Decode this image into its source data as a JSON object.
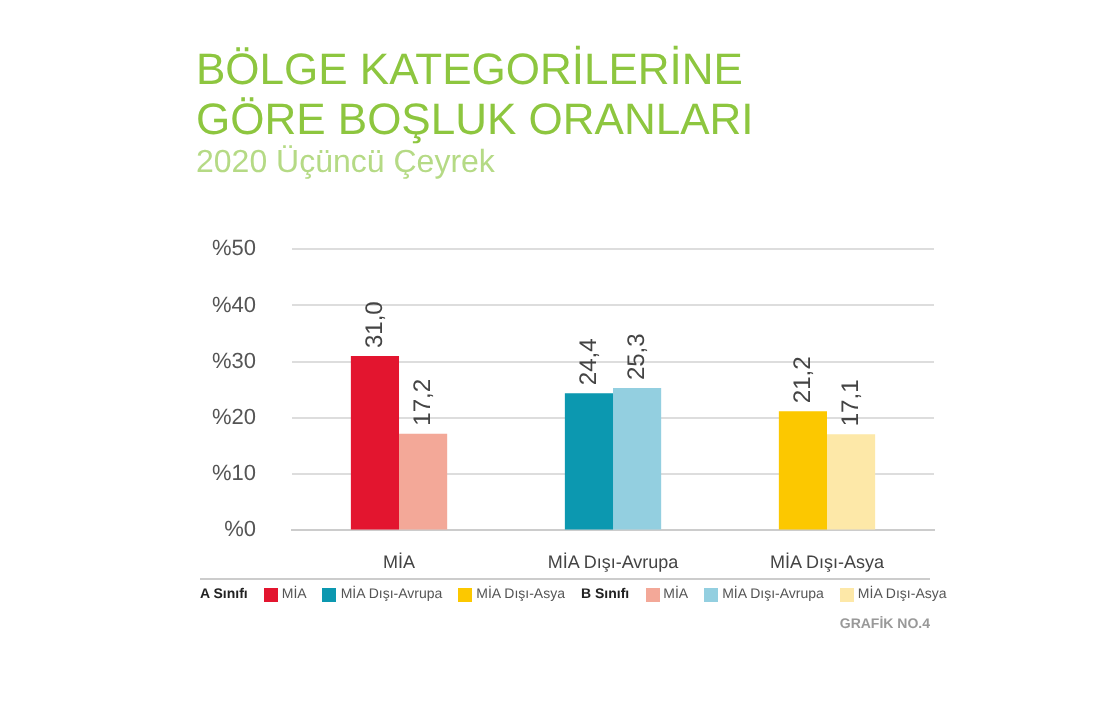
{
  "chart_data": {
    "type": "bar",
    "title": "BÖLGE KATEGORİLERİNE GÖRE BOŞLUK ORANLARI",
    "subtitle": "2020 Üçüncü Çeyrek",
    "categories": [
      "MİA",
      "MİA Dışı-Avrupa",
      "MİA Dışı-Asya"
    ],
    "series": [
      {
        "name": "A Sınıfı",
        "colors": [
          "#e3152f",
          "#0c98b0",
          "#fcc800"
        ],
        "values": [
          31.0,
          24.4,
          21.2
        ],
        "value_labels": [
          "31,0",
          "24,4",
          "21,2"
        ]
      },
      {
        "name": "B Sınıfı",
        "colors": [
          "#f3a898",
          "#93cfe0",
          "#fde8a8"
        ],
        "values": [
          17.2,
          25.3,
          17.1
        ],
        "value_labels": [
          "17,2",
          "25,3",
          "17,1"
        ]
      }
    ],
    "ylim": [
      0,
      50
    ],
    "yticks": [
      {
        "value": 0,
        "label": "%0"
      },
      {
        "value": 10,
        "label": "%10"
      },
      {
        "value": 20,
        "label": "%20"
      },
      {
        "value": 30,
        "label": "%30"
      },
      {
        "value": 40,
        "label": "%40"
      },
      {
        "value": 50,
        "label": "%50"
      }
    ],
    "grid": "y",
    "legend": "bottom",
    "annotations": [
      "GRAFİK NO.4"
    ]
  }
}
